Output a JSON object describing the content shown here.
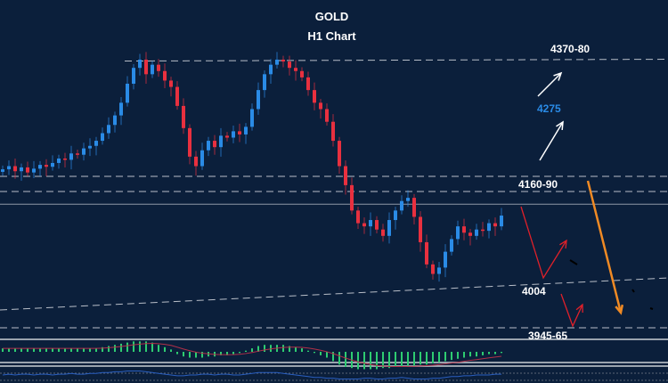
{
  "chart_data": {
    "type": "candlestick",
    "title": "GOLD",
    "subtitle": "H1 Chart",
    "colors": {
      "background": "#0b1f3b",
      "up": "#2a8be6",
      "down": "#e8303f",
      "levels": "#b8bec8",
      "macd_hist": "#2ecc71",
      "macd_signal": "#b03048",
      "osc": "#2a5fc0",
      "arrow_up": "#ffffff",
      "arrow_scenario": "#e0202a",
      "arrow_down": "#f08a24",
      "target_label": "#2a8be6"
    },
    "closes": [
      4195,
      4200,
      4192,
      4198,
      4190,
      4196,
      4202,
      4199,
      4205,
      4212,
      4210,
      4220,
      4218,
      4228,
      4232,
      4240,
      4252,
      4265,
      4280,
      4300,
      4330,
      4355,
      4368,
      4345,
      4360,
      4350,
      4335,
      4325,
      4295,
      4260,
      4215,
      4200,
      4225,
      4240,
      4230,
      4248,
      4245,
      4255,
      4250,
      4262,
      4290,
      4320,
      4345,
      4360,
      4368,
      4365,
      4355,
      4350,
      4340,
      4320,
      4300,
      4290,
      4270,
      4240,
      4200,
      4170,
      4130,
      4110,
      4105,
      4115,
      4100,
      4090,
      4115,
      4130,
      4145,
      4150,
      4120,
      4080,
      4045,
      4030,
      4040,
      4065,
      4085,
      4105,
      4095,
      4090,
      4100,
      4098,
      4110,
      4105,
      4122
    ],
    "macd_histogram": [
      3,
      3,
      3,
      3,
      3,
      3,
      3,
      3,
      3,
      3,
      3,
      3,
      3,
      3,
      3,
      3,
      4,
      5,
      6,
      7,
      8,
      9,
      9,
      9,
      8,
      6,
      4,
      2,
      -2,
      -4,
      -5,
      -5,
      -5,
      -4,
      -4,
      -3,
      -3,
      -2,
      -1,
      1,
      3,
      5,
      6,
      6,
      6,
      6,
      5,
      4,
      3,
      1,
      -1,
      -3,
      -5,
      -8,
      -11,
      -13,
      -14,
      -15,
      -15,
      -15,
      -15,
      -14,
      -14,
      -13,
      -13,
      -12,
      -12,
      -11,
      -11,
      -10,
      -9,
      -8,
      -7,
      -6,
      -5,
      -4,
      -4,
      -3,
      -2,
      -2,
      -1
    ],
    "oscillator": [
      0,
      1,
      0,
      1,
      1,
      0,
      1,
      1,
      0,
      1,
      1,
      2,
      1,
      1,
      2,
      2,
      3,
      3,
      4,
      4,
      5,
      5,
      5,
      4,
      3,
      2,
      1,
      0,
      -1,
      -1,
      0,
      0,
      1,
      1,
      0,
      1,
      1,
      0,
      0,
      1,
      2,
      3,
      3,
      3,
      3,
      2,
      1,
      0,
      -1,
      -2,
      -3,
      -3,
      -4,
      -4,
      -5,
      -5,
      -5,
      -5,
      -4,
      -4,
      -5,
      -5,
      -4,
      -4,
      -3,
      -4,
      -5,
      -5,
      -5,
      -4,
      -4,
      -3,
      -2,
      -2,
      -1,
      -1,
      0,
      0,
      0,
      1,
      1
    ],
    "levels": [
      {
        "label": "4370-80",
        "price": 4370
      },
      {
        "label": "4275",
        "price": 4275
      },
      {
        "label": "4160-90",
        "price": 4160
      },
      {
        "label": "4004",
        "price": 4004
      },
      {
        "label": "3945-65",
        "price": 3945
      }
    ],
    "current_price": 4140
  }
}
